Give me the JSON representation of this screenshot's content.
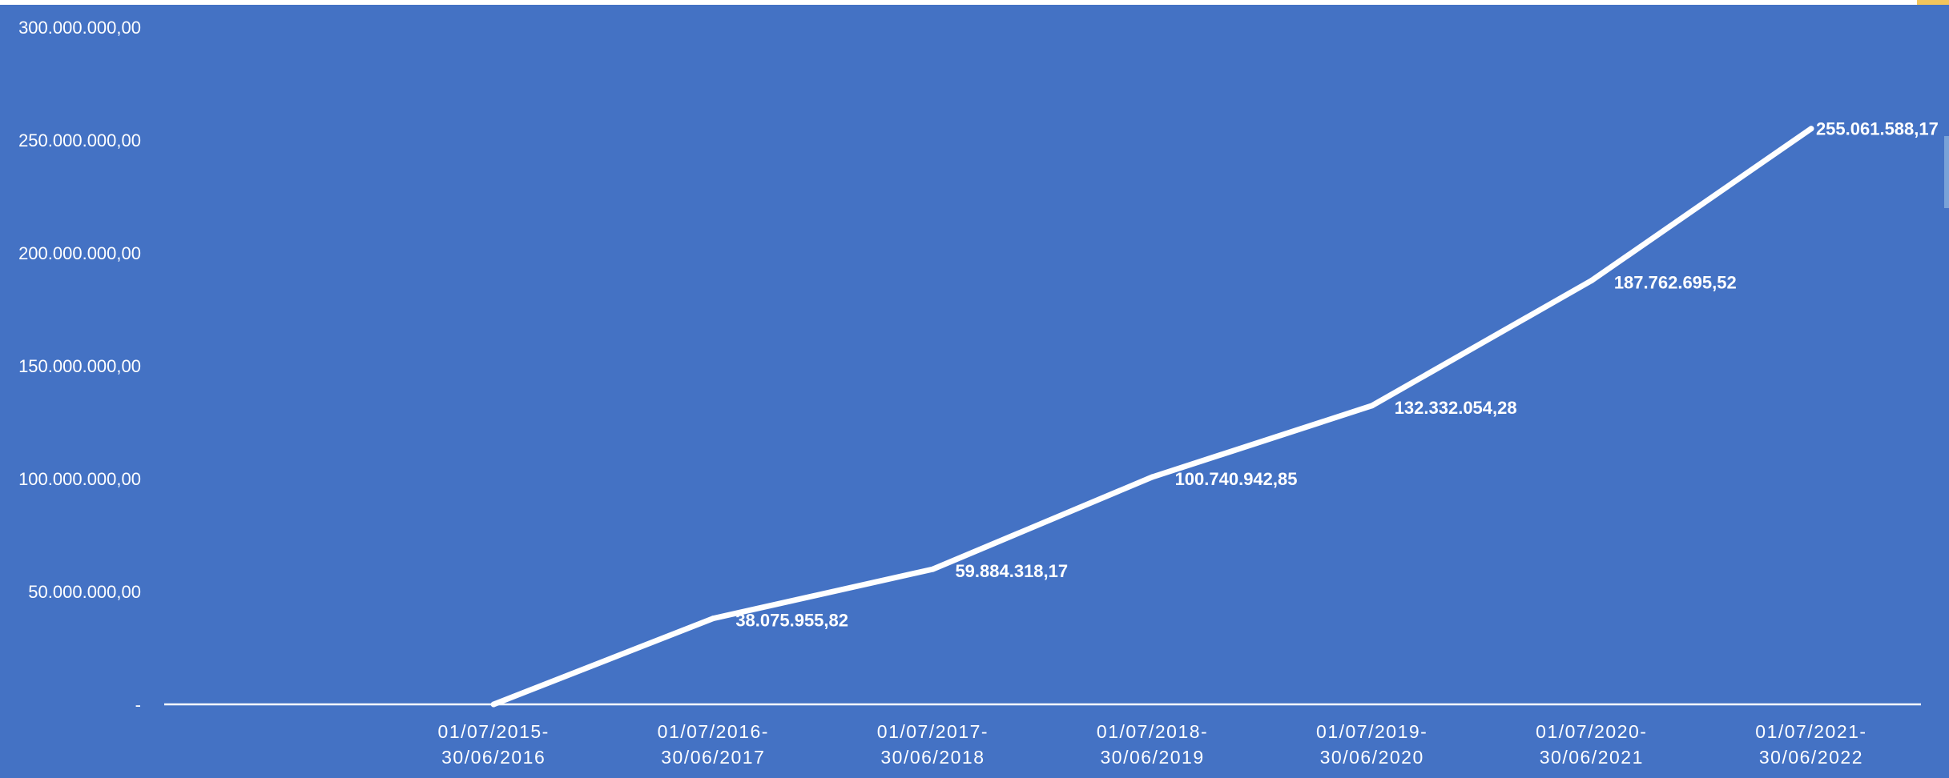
{
  "chart_data": {
    "type": "line",
    "categories": [
      "",
      "01/07/2015-30/06/2016",
      "01/07/2016-30/06/2017",
      "01/07/2017-30/06/2018",
      "01/07/2018-30/06/2019",
      "01/07/2019-30/06/2020",
      "01/07/2020-30/06/2021",
      "01/07/2021-30/06/2022"
    ],
    "category_lines": [
      [
        "",
        ""
      ],
      [
        "01/07/2015-",
        "30/06/2016"
      ],
      [
        "01/07/2016-",
        "30/06/2017"
      ],
      [
        "01/07/2017-",
        "30/06/2018"
      ],
      [
        "01/07/2018-",
        "30/06/2019"
      ],
      [
        "01/07/2019-",
        "30/06/2020"
      ],
      [
        "01/07/2020-",
        "30/06/2021"
      ],
      [
        "01/07/2021-",
        "30/06/2022"
      ]
    ],
    "series": [
      {
        "values": [
          null,
          0,
          38075955.82,
          59884318.17,
          100740942.85,
          132332054.28,
          187762695.52,
          255061588.17
        ],
        "labels": [
          "",
          "",
          "38.075.955,82",
          "59.884.318,17",
          "100.740.942,85",
          "132.332.054,28",
          "187.762.695,52",
          "255.061.588,17"
        ]
      }
    ],
    "ylim": [
      0,
      300000000
    ],
    "yticks": [
      0,
      50000000,
      100000000,
      150000000,
      200000000,
      250000000,
      300000000
    ],
    "ytick_labels": [
      "-",
      "50.000.000,00",
      "100.000.000,00",
      "150.000.000,00",
      "200.000.000,00",
      "250.000.000,00",
      "300.000.000,00"
    ],
    "title": "",
    "xlabel": "",
    "ylabel": "",
    "grid": false,
    "drop_lines": true,
    "legend": "none",
    "colors": {
      "background": "#4472C4",
      "line": "#ffffff",
      "text": "#ffffff"
    }
  }
}
